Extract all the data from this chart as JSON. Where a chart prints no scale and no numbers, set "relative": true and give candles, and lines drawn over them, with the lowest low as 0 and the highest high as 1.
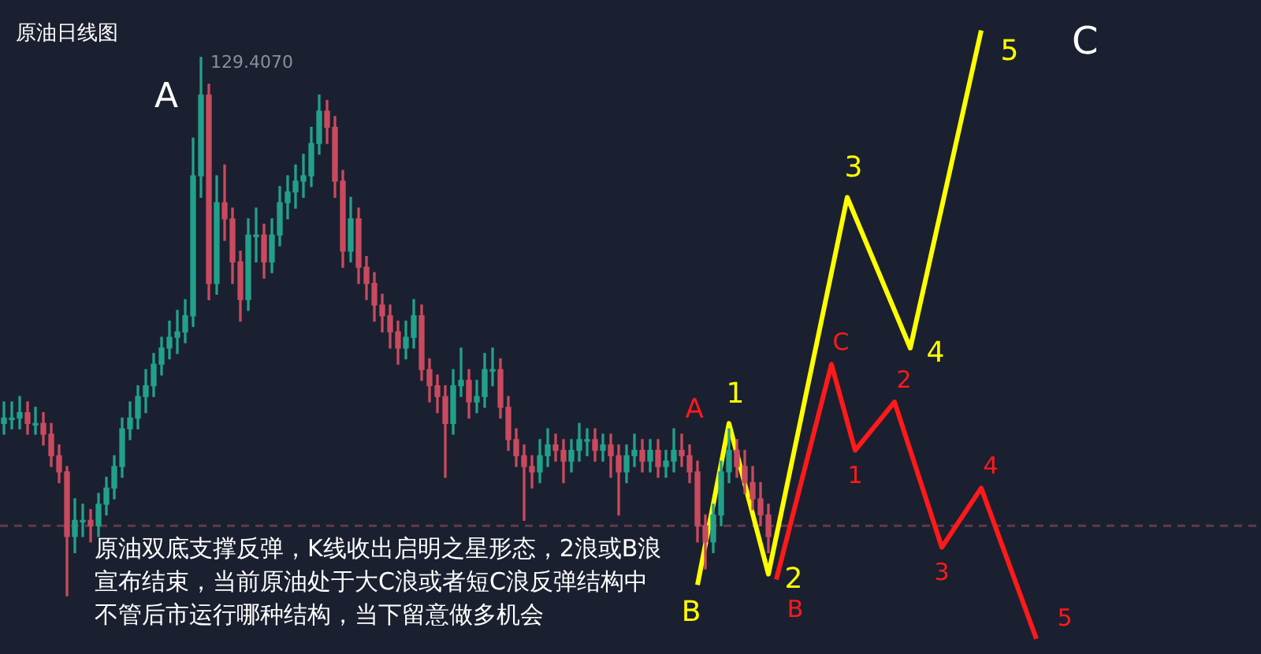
{
  "chart_data": {
    "type": "candlestick",
    "title": "原油日线图",
    "relative": true,
    "tick_labels": false,
    "categories": [
      null,
      null,
      null,
      null,
      null,
      null,
      null,
      null,
      null,
      null,
      null,
      null,
      null,
      null,
      null,
      null,
      null,
      null,
      null,
      null,
      null,
      null,
      null,
      null,
      null,
      null,
      null,
      null,
      null,
      null,
      null,
      null,
      null,
      null,
      null,
      null,
      null,
      null,
      null,
      null,
      null,
      null,
      null,
      null,
      null,
      null,
      null,
      null,
      null,
      null,
      null,
      null,
      null,
      null,
      null,
      null,
      null,
      null,
      null,
      null,
      null,
      null,
      null,
      null,
      null,
      null,
      null,
      null,
      null,
      null,
      null,
      null,
      null,
      null,
      null,
      null,
      null,
      null,
      null,
      null,
      null,
      null,
      null,
      null,
      null,
      null,
      null,
      null,
      null,
      null,
      null,
      null,
      null,
      null,
      null,
      null,
      null,
      null,
      null,
      null,
      null,
      null,
      null,
      null,
      null,
      null,
      null,
      null,
      null,
      null,
      null,
      null,
      null,
      null,
      null,
      null,
      null,
      null,
      null,
      null,
      null,
      null,
      null,
      null,
      null,
      null,
      null,
      null,
      null,
      null,
      null,
      null,
      null,
      null,
      null,
      null,
      null,
      null,
      null,
      null,
      null,
      null,
      null,
      null,
      null,
      null,
      null,
      null,
      null,
      null,
      null,
      null,
      null,
      null,
      null,
      null,
      null,
      null,
      null,
      null
    ],
    "ohlc": [
      [
        0.32,
        0.36,
        0.3,
        0.33
      ],
      [
        0.33,
        0.36,
        0.31,
        0.33
      ],
      [
        0.33,
        0.37,
        0.31,
        0.34
      ],
      [
        0.34,
        0.36,
        0.3,
        0.32
      ],
      [
        0.32,
        0.35,
        0.3,
        0.32
      ],
      [
        0.32,
        0.34,
        0.28,
        0.3
      ],
      [
        0.3,
        0.32,
        0.24,
        0.26
      ],
      [
        0.26,
        0.28,
        0.21,
        0.23
      ],
      [
        0.23,
        0.24,
        0.0,
        0.11
      ],
      [
        0.11,
        0.18,
        0.08,
        0.14
      ],
      [
        0.14,
        0.17,
        0.11,
        0.14
      ],
      [
        0.14,
        0.16,
        0.1,
        0.13
      ],
      [
        0.13,
        0.19,
        0.11,
        0.17
      ],
      [
        0.17,
        0.22,
        0.15,
        0.2
      ],
      [
        0.2,
        0.26,
        0.18,
        0.24
      ],
      [
        0.24,
        0.33,
        0.22,
        0.31
      ],
      [
        0.31,
        0.36,
        0.29,
        0.33
      ],
      [
        0.33,
        0.39,
        0.31,
        0.37
      ],
      [
        0.37,
        0.42,
        0.34,
        0.39
      ],
      [
        0.39,
        0.45,
        0.37,
        0.43
      ],
      [
        0.43,
        0.48,
        0.41,
        0.46
      ],
      [
        0.46,
        0.51,
        0.44,
        0.48
      ],
      [
        0.48,
        0.53,
        0.45,
        0.49
      ],
      [
        0.49,
        0.55,
        0.47,
        0.52
      ],
      [
        0.52,
        0.85,
        0.5,
        0.78
      ],
      [
        0.78,
        1,
        0.74,
        0.93
      ],
      [
        0.93,
        0.95,
        0.55,
        0.58
      ],
      [
        0.58,
        0.78,
        0.56,
        0.73
      ],
      [
        0.73,
        0.8,
        0.66,
        0.7
      ],
      [
        0.7,
        0.72,
        0.58,
        0.62
      ],
      [
        0.62,
        0.64,
        0.51,
        0.55
      ],
      [
        0.55,
        0.7,
        0.53,
        0.67
      ],
      [
        0.67,
        0.72,
        0.62,
        0.67
      ],
      [
        0.67,
        0.69,
        0.59,
        0.62
      ],
      [
        0.62,
        0.7,
        0.6,
        0.67
      ],
      [
        0.67,
        0.76,
        0.65,
        0.73
      ],
      [
        0.73,
        0.78,
        0.7,
        0.75
      ],
      [
        0.75,
        0.8,
        0.72,
        0.77
      ],
      [
        0.77,
        0.82,
        0.74,
        0.78
      ],
      [
        0.78,
        0.87,
        0.76,
        0.84
      ],
      [
        0.84,
        0.93,
        0.82,
        0.9
      ],
      [
        0.9,
        0.92,
        0.84,
        0.87
      ],
      [
        0.87,
        0.89,
        0.74,
        0.77
      ],
      [
        0.77,
        0.79,
        0.61,
        0.64
      ],
      [
        0.64,
        0.74,
        0.62,
        0.7
      ],
      [
        0.7,
        0.72,
        0.58,
        0.61
      ],
      [
        0.61,
        0.63,
        0.55,
        0.58
      ],
      [
        0.58,
        0.6,
        0.51,
        0.54
      ],
      [
        0.54,
        0.56,
        0.49,
        0.52
      ],
      [
        0.52,
        0.54,
        0.46,
        0.49
      ],
      [
        0.49,
        0.51,
        0.43,
        0.46
      ],
      [
        0.46,
        0.51,
        0.44,
        0.48
      ],
      [
        0.48,
        0.55,
        0.46,
        0.52
      ],
      [
        0.52,
        0.54,
        0.4,
        0.42
      ],
      [
        0.42,
        0.44,
        0.36,
        0.39
      ],
      [
        0.39,
        0.41,
        0.34,
        0.37
      ],
      [
        0.37,
        0.39,
        0.22,
        0.32
      ],
      [
        0.32,
        0.42,
        0.3,
        0.39
      ],
      [
        0.39,
        0.46,
        0.37,
        0.4
      ],
      [
        0.4,
        0.42,
        0.33,
        0.36
      ],
      [
        0.36,
        0.4,
        0.34,
        0.37
      ],
      [
        0.37,
        0.45,
        0.35,
        0.42
      ],
      [
        0.42,
        0.46,
        0.39,
        0.42
      ],
      [
        0.42,
        0.44,
        0.33,
        0.35
      ],
      [
        0.35,
        0.37,
        0.27,
        0.29
      ],
      [
        0.29,
        0.31,
        0.24,
        0.26
      ],
      [
        0.26,
        0.28,
        0.14,
        0.24
      ],
      [
        0.24,
        0.26,
        0.2,
        0.23
      ],
      [
        0.23,
        0.29,
        0.21,
        0.26
      ],
      [
        0.26,
        0.31,
        0.24,
        0.28
      ],
      [
        0.28,
        0.3,
        0.25,
        0.27
      ],
      [
        0.27,
        0.29,
        0.21,
        0.25
      ],
      [
        0.25,
        0.29,
        0.23,
        0.27
      ],
      [
        0.27,
        0.32,
        0.25,
        0.29
      ],
      [
        0.29,
        0.31,
        0.26,
        0.29
      ],
      [
        0.29,
        0.31,
        0.25,
        0.27
      ],
      [
        0.27,
        0.3,
        0.25,
        0.28
      ],
      [
        0.28,
        0.3,
        0.22,
        0.26
      ],
      [
        0.26,
        0.28,
        0.15,
        0.23
      ],
      [
        0.23,
        0.28,
        0.21,
        0.26
      ],
      [
        0.26,
        0.3,
        0.24,
        0.27
      ],
      [
        0.27,
        0.29,
        0.23,
        0.25
      ],
      [
        0.25,
        0.29,
        0.23,
        0.27
      ],
      [
        0.27,
        0.29,
        0.22,
        0.24
      ],
      [
        0.24,
        0.27,
        0.22,
        0.25
      ],
      [
        0.25,
        0.31,
        0.23,
        0.27
      ],
      [
        0.27,
        0.3,
        0.24,
        0.26
      ],
      [
        0.26,
        0.28,
        0.21,
        0.23
      ],
      [
        0.23,
        0.25,
        0.1,
        0.13
      ],
      [
        0.13,
        0.15,
        0.05,
        0.1
      ],
      [
        0.1,
        0.17,
        0.08,
        0.15
      ],
      [
        0.15,
        0.25,
        0.13,
        0.23
      ],
      [
        0.23,
        0.31,
        0.21,
        0.27
      ],
      [
        0.27,
        0.29,
        0.22,
        0.24
      ],
      [
        0.24,
        0.27,
        0.19,
        0.21
      ],
      [
        0.21,
        0.24,
        0.16,
        0.18
      ],
      [
        0.18,
        0.21,
        0.13,
        0.15
      ],
      [
        0.15,
        0.17,
        0.08,
        0.11
      ],
      null,
      null,
      null,
      null,
      null,
      null,
      null,
      null,
      null,
      null,
      null,
      null,
      null,
      null,
      null,
      null,
      null,
      null,
      null,
      null,
      null,
      null,
      null,
      null,
      null,
      null,
      null,
      null,
      null,
      null,
      null,
      null,
      null,
      null,
      null,
      null,
      null,
      null,
      null,
      null,
      null,
      null,
      null,
      null,
      null,
      null,
      null,
      null,
      null,
      null,
      null,
      null,
      null,
      null,
      null,
      null,
      null,
      null,
      null,
      null,
      null,
      null
    ],
    "colors": [
      "#22a08a",
      "#22a08a",
      "#22a08a",
      "#c94a5e",
      "#22a08a",
      "#c94a5e",
      "#c94a5e",
      "#c94a5e",
      "#c94a5e",
      "#22a08a",
      "#22a08a",
      "#c94a5e",
      "#22a08a",
      "#22a08a",
      "#22a08a",
      "#22a08a",
      "#22a08a",
      "#22a08a",
      "#22a08a",
      "#22a08a",
      "#22a08a",
      "#22a08a",
      "#22a08a",
      "#22a08a",
      "#22a08a",
      "#22a08a",
      "#c94a5e",
      "#22a08a",
      "#c94a5e",
      "#c94a5e",
      "#c94a5e",
      "#22a08a",
      "#22a08a",
      "#c94a5e",
      "#22a08a",
      "#22a08a",
      "#22a08a",
      "#22a08a",
      "#22a08a",
      "#22a08a",
      "#22a08a",
      "#c94a5e",
      "#c94a5e",
      "#c94a5e",
      "#22a08a",
      "#c94a5e",
      "#c94a5e",
      "#c94a5e",
      "#c94a5e",
      "#c94a5e",
      "#c94a5e",
      "#22a08a",
      "#22a08a",
      "#c94a5e",
      "#c94a5e",
      "#c94a5e",
      "#c94a5e",
      "#22a08a",
      "#22a08a",
      "#c94a5e",
      "#22a08a",
      "#22a08a",
      "#22a08a",
      "#c94a5e",
      "#c94a5e",
      "#c94a5e",
      "#c94a5e",
      "#c94a5e",
      "#22a08a",
      "#22a08a",
      "#c94a5e",
      "#c94a5e",
      "#22a08a",
      "#22a08a",
      "#22a08a",
      "#c94a5e",
      "#22a08a",
      "#c94a5e",
      "#c94a5e",
      "#22a08a",
      "#22a08a",
      "#c94a5e",
      "#22a08a",
      "#c94a5e",
      "#22a08a",
      "#22a08a",
      "#c94a5e",
      "#c94a5e",
      "#c94a5e",
      "#c94a5e",
      "#22a08a",
      "#22a08a",
      "#22a08a",
      "#c94a5e",
      "#c94a5e",
      "#c94a5e",
      "#c94a5e",
      "#c94a5e",
      null,
      null,
      null,
      null,
      null,
      null,
      null,
      null,
      null,
      null,
      null,
      null,
      null,
      null,
      null,
      null,
      null,
      null,
      null,
      null,
      null,
      null,
      null,
      null,
      null,
      null,
      null,
      null,
      null,
      null,
      null,
      null,
      null,
      null,
      null,
      null,
      null,
      null,
      null,
      null,
      null,
      null,
      null,
      null,
      null,
      null,
      null,
      null,
      null,
      null,
      null,
      null,
      null,
      null,
      null,
      null,
      null,
      null,
      null,
      null,
      null,
      null
    ],
    "series": [
      {
        "type": "line",
        "color": "#ffff00",
        "values": [
          null,
          null,
          null,
          null,
          null,
          null,
          null,
          null,
          null,
          null,
          null,
          null,
          null,
          null,
          null,
          null,
          null,
          null,
          null,
          null,
          null,
          null,
          null,
          null,
          null,
          null,
          null,
          null,
          null,
          null,
          null,
          null,
          null,
          null,
          null,
          null,
          null,
          null,
          null,
          null,
          null,
          null,
          null,
          null,
          null,
          null,
          null,
          null,
          null,
          null,
          null,
          null,
          null,
          null,
          null,
          null,
          null,
          null,
          null,
          null,
          null,
          null,
          null,
          null,
          null,
          null,
          null,
          null,
          null,
          null,
          null,
          null,
          null,
          null,
          null,
          null,
          null,
          null,
          null,
          null,
          null,
          null,
          null,
          null,
          null,
          null,
          null,
          null,
          0.02,
          null,
          null,
          null,
          0.32,
          null,
          null,
          null,
          null,
          0.04,
          null,
          null,
          null,
          null,
          null,
          null,
          null,
          null,
          null,
          0.74,
          null,
          null,
          null,
          null,
          null,
          null,
          null,
          0.46,
          null,
          null,
          null,
          null,
          null,
          null,
          null,
          null,
          1.05,
          null,
          null,
          null,
          null,
          null,
          null,
          null,
          null,
          null,
          null,
          null,
          null,
          null,
          null,
          null,
          null,
          null,
          null,
          null,
          null,
          null,
          null,
          null,
          null,
          null,
          null,
          null,
          null,
          null,
          null,
          null,
          null,
          null,
          null,
          null
        ]
      },
      {
        "type": "line",
        "color": "#ff1a1a",
        "values": [
          null,
          null,
          null,
          null,
          null,
          null,
          null,
          null,
          null,
          null,
          null,
          null,
          null,
          null,
          null,
          null,
          null,
          null,
          null,
          null,
          null,
          null,
          null,
          null,
          null,
          null,
          null,
          null,
          null,
          null,
          null,
          null,
          null,
          null,
          null,
          null,
          null,
          null,
          null,
          null,
          null,
          null,
          null,
          null,
          null,
          null,
          null,
          null,
          null,
          null,
          null,
          null,
          null,
          null,
          null,
          null,
          null,
          null,
          null,
          null,
          null,
          null,
          null,
          null,
          null,
          null,
          null,
          null,
          null,
          null,
          null,
          null,
          null,
          null,
          null,
          null,
          null,
          null,
          null,
          null,
          null,
          null,
          null,
          null,
          null,
          null,
          null,
          null,
          null,
          null,
          null,
          null,
          null,
          null,
          null,
          null,
          null,
          null,
          0.03,
          null,
          null,
          null,
          null,
          null,
          null,
          0.43,
          null,
          null,
          0.27,
          null,
          null,
          null,
          null,
          0.36,
          null,
          null,
          null,
          null,
          null,
          0.09,
          null,
          null,
          null,
          null,
          0.2,
          null,
          null,
          null,
          null,
          null,
          null,
          -0.08,
          null,
          null,
          null,
          null,
          null,
          null,
          null,
          null,
          null,
          null,
          null,
          null,
          null,
          null,
          null,
          null,
          null,
          null,
          null,
          null,
          null,
          null,
          null,
          null,
          null,
          null,
          null,
          null
        ]
      }
    ],
    "marker": "none",
    "line_style": "solid",
    "ref_lines": [
      {
        "axis": "y",
        "value": 0.13,
        "color": "#5e3d48",
        "line_style": "dashed"
      }
    ],
    "annotations": [
      "129.4070",
      "原油双底支撑反弹，K线收出启明之星形态，2浪或B浪宣布结束，当前原油处于大C浪或者短C浪反弹结构中不管后市运行哪种结构，当下留意做多机会",
      "C",
      "A",
      "A",
      "B",
      "1",
      "2",
      "3",
      "4",
      "5",
      "B",
      "C",
      "1",
      "2",
      "3",
      "4",
      "5"
    ]
  }
}
